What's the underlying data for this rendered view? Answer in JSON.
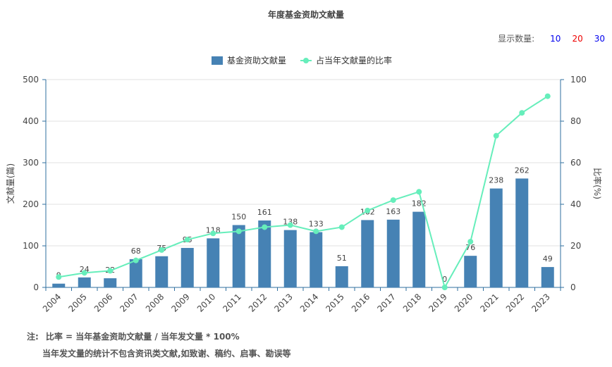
{
  "title": "年度基金资助文献量",
  "count_selector": {
    "label": "显示数量:",
    "options": [
      {
        "label": "10",
        "color": "#0000ee"
      },
      {
        "label": "20",
        "color": "#ee0000"
      },
      {
        "label": "30",
        "color": "#0000ee"
      }
    ]
  },
  "legend": {
    "bar": "基金资助文献量",
    "line": "占当年文献量的比率"
  },
  "notes": {
    "prefix": "注:",
    "line1": "比率 = 当年基金资助文献量 / 当年发文量 * 100%",
    "line2": "当年发文量的统计不包含资讯类文献,如致谢、稿约、启事、勘误等"
  },
  "colors": {
    "bar": "#4682b4",
    "line": "#66eebb",
    "axis": "#2f6f9f",
    "grid": "#e0e0e0"
  },
  "chart_data": {
    "type": "bar",
    "title": "年度基金资助文献量",
    "categories": [
      "2004",
      "2005",
      "2006",
      "2007",
      "2008",
      "2009",
      "2010",
      "2011",
      "2012",
      "2013",
      "2014",
      "2015",
      "2016",
      "2017",
      "2018",
      "2019",
      "2020",
      "2021",
      "2022",
      "2023"
    ],
    "series": [
      {
        "name": "基金资助文献量",
        "type": "bar",
        "axis": "left",
        "values": [
          9,
          24,
          22,
          68,
          75,
          95,
          118,
          150,
          161,
          138,
          133,
          51,
          162,
          163,
          182,
          0,
          76,
          238,
          262,
          49
        ]
      },
      {
        "name": "占当年文献量的比率",
        "type": "line",
        "axis": "right",
        "values": [
          5,
          7,
          8,
          13,
          18,
          23,
          26,
          27,
          29,
          30,
          27,
          29,
          37,
          42,
          46,
          0,
          22,
          73,
          84,
          92
        ]
      }
    ],
    "ylabel": "文献量(篇)",
    "y2label": "比率(%)",
    "ylim": [
      0,
      500
    ],
    "y2lim": [
      0,
      100
    ],
    "yticks": [
      0,
      100,
      200,
      300,
      400,
      500
    ],
    "y2ticks": [
      0,
      20,
      40,
      60,
      80,
      100
    ],
    "grid": true,
    "legend_position": "top-center"
  }
}
